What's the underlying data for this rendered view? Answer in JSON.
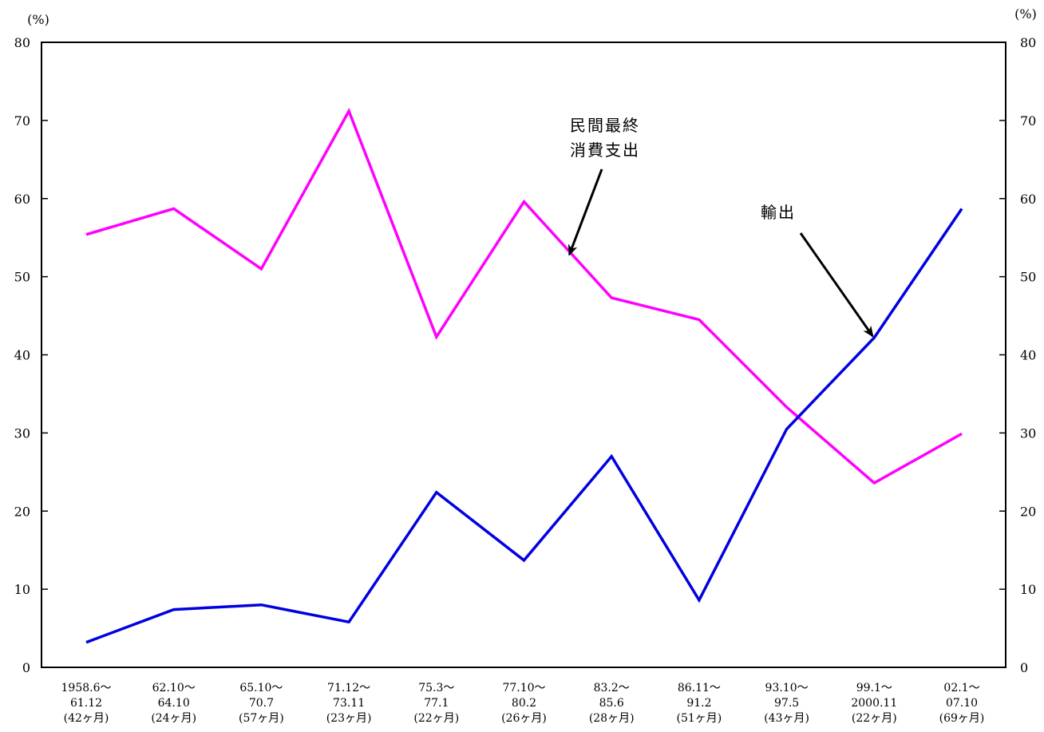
{
  "chart_data": {
    "type": "line",
    "title": "",
    "xlabel": "",
    "ylabel_left": "(%)",
    "ylabel_right": "(%)",
    "ylim": [
      0,
      80
    ],
    "yticks": [
      0,
      10,
      20,
      30,
      40,
      50,
      60,
      70,
      80
    ],
    "yticks_right": [
      0,
      10,
      20,
      30,
      40,
      50,
      60,
      70,
      80
    ],
    "grid": false,
    "legend": "none",
    "categories": [
      [
        "1958.6～",
        "61.12",
        "(42ヶ月)"
      ],
      [
        "62.10～",
        "64.10",
        "(24ヶ月)"
      ],
      [
        "65.10～",
        "70.7",
        "(57ヶ月)"
      ],
      [
        "71.12～",
        "73.11",
        "(23ヶ月)"
      ],
      [
        "75.3～",
        "77.1",
        "(22ヶ月)"
      ],
      [
        "77.10～",
        "80.2",
        "(26ヶ月)"
      ],
      [
        "83.2～",
        "85.6",
        "(28ヶ月)"
      ],
      [
        "86.11～",
        "91.2",
        "(51ヶ月)"
      ],
      [
        "93.10～",
        "97.5",
        "(43ヶ月)"
      ],
      [
        "99.1～",
        "2000.11",
        "(22ヶ月)"
      ],
      [
        "02.1～",
        "07.10",
        "(69ヶ月)"
      ]
    ],
    "series": [
      {
        "name": "民間最終消費支出",
        "color": "#ff00ff",
        "values": [
          55.4,
          58.7,
          51.0,
          71.2,
          42.3,
          59.6,
          47.3,
          44.5,
          33.3,
          23.6,
          29.9
        ]
      },
      {
        "name": "輸出",
        "color": "#0000e0",
        "values": [
          3.2,
          7.4,
          8.0,
          5.8,
          22.4,
          13.7,
          27.0,
          8.6,
          30.5,
          42.2,
          58.7
        ]
      }
    ],
    "annotations": [
      {
        "series": 0,
        "lines": [
          "民間最終",
          "消費支出"
        ],
        "point_index": 5.5
      },
      {
        "series": 1,
        "lines": [
          "輸出"
        ],
        "point_index": 9
      }
    ]
  }
}
